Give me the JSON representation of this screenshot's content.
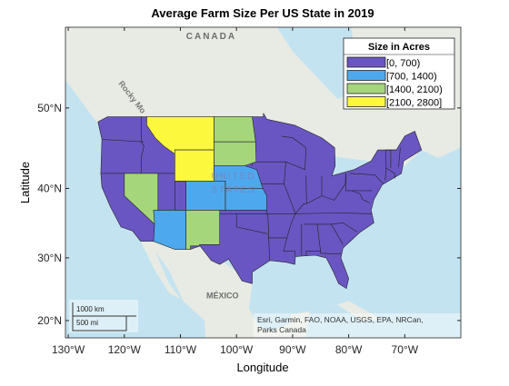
{
  "chart_data": {
    "type": "choropleth",
    "title": "Average Farm Size Per US State in 2019",
    "xlabel": "Longitude",
    "ylabel": "Latitude",
    "xlim": [
      -130.5,
      -60
    ],
    "ylim": [
      17.1,
      58.3
    ],
    "xticks": [
      {
        "value": -130,
        "label": "130°W"
      },
      {
        "value": -120,
        "label": "120°W"
      },
      {
        "value": -110,
        "label": "110°W"
      },
      {
        "value": -100,
        "label": "100°W"
      },
      {
        "value": -90,
        "label": "90°W"
      },
      {
        "value": -80,
        "label": "80°W"
      },
      {
        "value": -70,
        "label": "70°W"
      }
    ],
    "yticks": [
      {
        "value": 20,
        "label": "20°N"
      },
      {
        "value": 30,
        "label": "30°N"
      },
      {
        "value": 40,
        "label": "40°N"
      },
      {
        "value": 50,
        "label": "50°N"
      }
    ],
    "projection": "mercator",
    "legend": {
      "title": "Size in Acres",
      "position": "northeast",
      "entries": [
        {
          "label": "[0, 700)",
          "color": "#6a56c2"
        },
        {
          "label": "[700, 1400)",
          "color": "#4ea8ee"
        },
        {
          "label": "[1400, 2100)",
          "color": "#a5d67b"
        },
        {
          "label": "[2100, 2800]",
          "color": "#fbf83e"
        }
      ]
    },
    "basemap_labels": {
      "country_north": "CANADA",
      "country_south": "MÉXICO",
      "country_center": [
        "UNITED",
        "STATES"
      ],
      "mountains": "Rocky Mo"
    },
    "scalebar": [
      "1000 km",
      "500 mi"
    ],
    "attribution": [
      "Esri, Garmin, FAO, NOAA, USGS, EPA, NRCan,",
      "Parks Canada"
    ]
  }
}
